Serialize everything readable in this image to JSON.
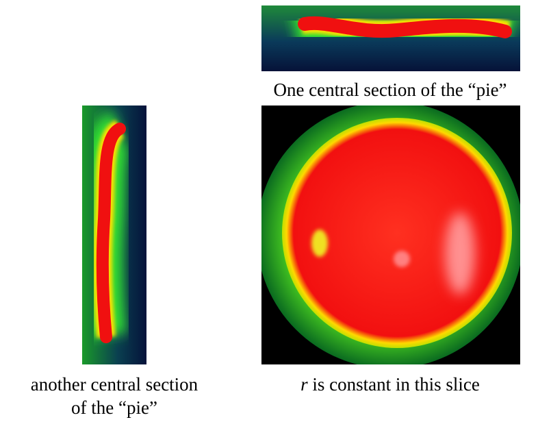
{
  "panels": [
    {
      "caption_lines": [
        "One central section of the “pie”"
      ]
    },
    {
      "caption_lines": [
        "another central section",
        "of the “pie”"
      ]
    },
    {
      "caption_parts": [
        "r",
        " is constant in this slice"
      ]
    }
  ]
}
